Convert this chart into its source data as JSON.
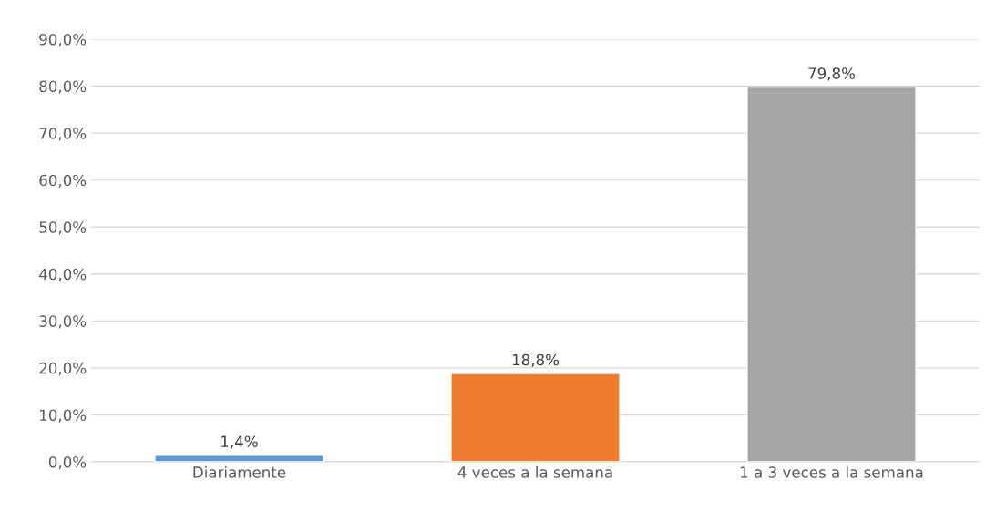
{
  "chart_data": {
    "type": "bar",
    "categories": [
      "Diariamente",
      "4 veces a la semana",
      "1 a 3 veces a la semana"
    ],
    "values": [
      1.4,
      18.8,
      79.8
    ],
    "colors": [
      "#5b9bd5",
      "#ed7d31",
      "#a5a5a5"
    ],
    "value_labels": [
      "1,4%",
      "18,8%",
      "79,8%"
    ],
    "ylim": [
      0,
      90
    ],
    "yticks": [
      {
        "value": 0,
        "label": "0,0%"
      },
      {
        "value": 10,
        "label": "10,0%"
      },
      {
        "value": 20,
        "label": "20,0%"
      },
      {
        "value": 30,
        "label": "30,0%"
      },
      {
        "value": 40,
        "label": "40,0%"
      },
      {
        "value": 50,
        "label": "50,0%"
      },
      {
        "value": 60,
        "label": "60,0%"
      },
      {
        "value": 70,
        "label": "70,0%"
      },
      {
        "value": 80,
        "label": "80,0%"
      },
      {
        "value": 90,
        "label": "90,0%"
      }
    ],
    "grid": "y",
    "legend": false
  }
}
